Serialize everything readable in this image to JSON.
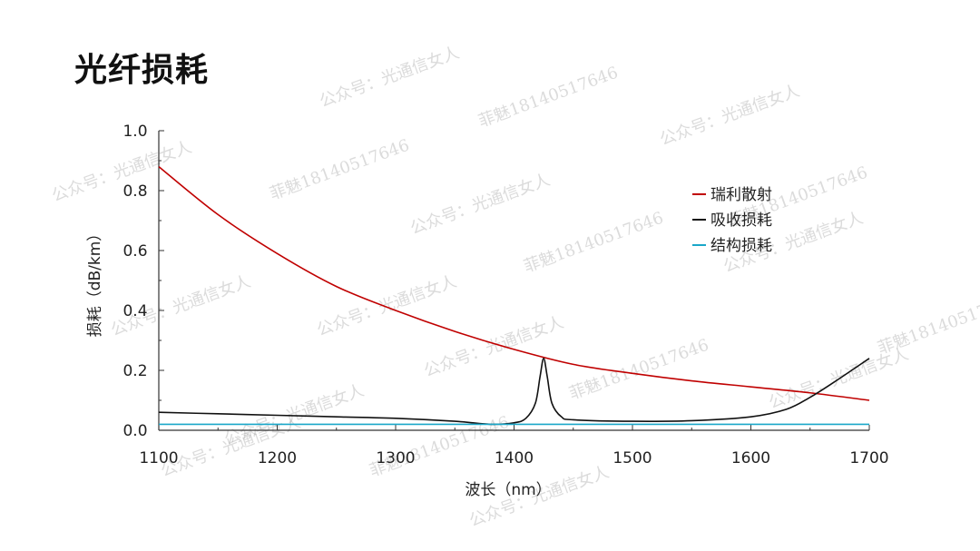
{
  "slide": {
    "title": "光纤损耗"
  },
  "chart_data": {
    "type": "line",
    "xlabel": "波长（nm）",
    "ylabel": "损耗（dB/km）",
    "xlim": [
      1100,
      1700
    ],
    "ylim": [
      0,
      1.0
    ],
    "xticks": [
      "1100",
      "1200",
      "1300",
      "1400",
      "1500",
      "1600",
      "1700"
    ],
    "yticks": [
      "0.0",
      "0.2",
      "0.4",
      "0.6",
      "0.8",
      "1.0"
    ],
    "grid": false,
    "legend_position": "right",
    "series": [
      {
        "name": "瑞利散射",
        "color": "#c00000",
        "x": [
          1100,
          1150,
          1200,
          1250,
          1300,
          1350,
          1400,
          1450,
          1500,
          1550,
          1600,
          1650,
          1700
        ],
        "y": [
          0.88,
          0.72,
          0.59,
          0.48,
          0.4,
          0.33,
          0.27,
          0.22,
          0.19,
          0.165,
          0.145,
          0.125,
          0.1
        ]
      },
      {
        "name": "吸收损耗",
        "color": "#111111",
        "x": [
          1100,
          1150,
          1200,
          1250,
          1300,
          1350,
          1380,
          1400,
          1410,
          1418,
          1422,
          1425,
          1428,
          1432,
          1440,
          1450,
          1500,
          1550,
          1600,
          1630,
          1650,
          1670,
          1700
        ],
        "y": [
          0.06,
          0.055,
          0.05,
          0.045,
          0.04,
          0.03,
          0.02,
          0.025,
          0.04,
          0.09,
          0.18,
          0.24,
          0.18,
          0.09,
          0.045,
          0.035,
          0.03,
          0.032,
          0.045,
          0.07,
          0.11,
          0.16,
          0.24
        ]
      },
      {
        "name": "结构损耗",
        "color": "#1aa7c9",
        "x": [
          1100,
          1700
        ],
        "y": [
          0.02,
          0.02
        ]
      }
    ]
  },
  "watermarks": [
    "公众号：光通信女人",
    "菲魅18140517646",
    "公众号：光通信女人",
    "公众号：光通信女人",
    "菲魅18140517646",
    "公众号：光通信女人",
    "菲魅18140517646",
    "公众号：光通信女人",
    "公众号：光通信女人",
    "菲魅18140517646",
    "公众号：光通信女人",
    "菲魅18140517646",
    "公众号：光通信女人",
    "公众号：光通信女人",
    "菲魅18140517646",
    "公众号：光通信女人",
    "公众号：光通信女人",
    "菲魅18140517646",
    "公众号：光通信女人"
  ]
}
